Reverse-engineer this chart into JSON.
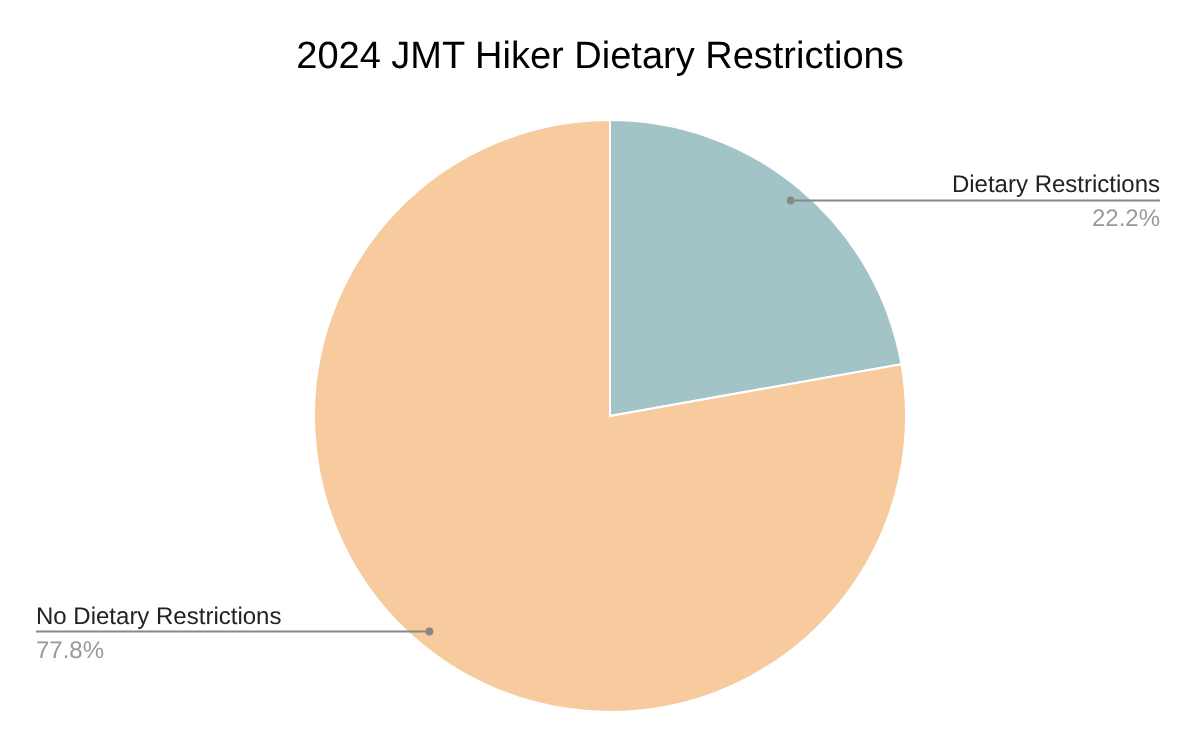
{
  "chart_data": {
    "type": "pie",
    "title": "2024 JMT Hiker Dietary Restrictions",
    "categories": [
      "Dietary Restrictions",
      "No Dietary Restrictions"
    ],
    "values": [
      22.2,
      77.8
    ],
    "colors": [
      "#a3c4c7",
      "#f8cb9e"
    ],
    "value_labels": [
      "22.2%",
      "77.8%"
    ]
  }
}
